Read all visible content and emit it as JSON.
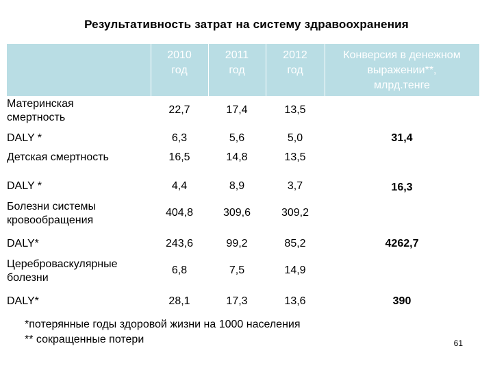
{
  "title": "Результативность затрат на систему здравоохранения",
  "table": {
    "columns": [
      "2010\nгод",
      "2011\nгод",
      "2012\nгод",
      "Конверсия в денежном\nвыражении**,\nмлрд.тенге"
    ],
    "rows": [
      {
        "label": "Материнская\nсмертность",
        "values": [
          "22,7",
          "17,4",
          "13,5"
        ]
      },
      {
        "label": "DALY *",
        "values": [
          "6,3",
          "5,6",
          "5,0"
        ],
        "conversion": "31,4"
      },
      {
        "label": "Детская смертность",
        "values": [
          "16,5",
          "14,8",
          "13,5"
        ]
      },
      {
        "label": "DALY *",
        "values": [
          "4,4",
          "8,9",
          "3,7"
        ],
        "conversion": "16,3"
      },
      {
        "label": "Болезни системы\nкровообращения",
        "values": [
          "404,8",
          "309,6",
          "309,2"
        ]
      },
      {
        "label": "DALY*",
        "values": [
          "243,6",
          "99,2",
          "85,2"
        ],
        "conversion": "4262,7"
      },
      {
        "label": "Цереброваскулярные\nболезни",
        "values": [
          "6,8",
          "7,5",
          "14,9"
        ]
      },
      {
        "label": "DALY*",
        "values": [
          "28,1",
          "17,3",
          "13,6"
        ],
        "conversion": "390"
      }
    ]
  },
  "footnotes": [
    "*потерянные годы здоровой жизни на 1000 населения",
    "** сокращенные потери"
  ],
  "page_number": "61",
  "colors": {
    "header_background": "#b9dde4",
    "header_text": "#ffffff"
  }
}
